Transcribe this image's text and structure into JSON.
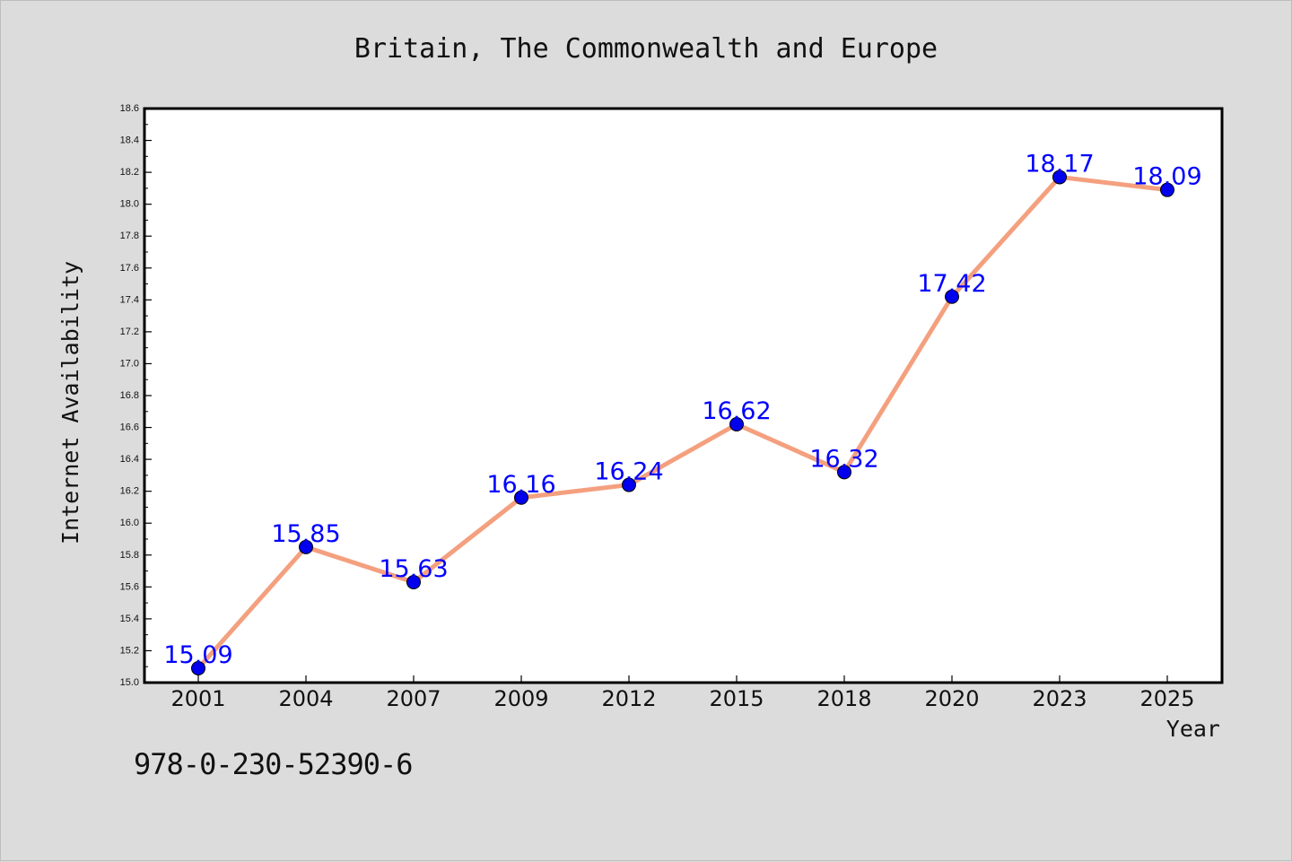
{
  "chart_data": {
    "type": "line",
    "title": "Britain, The Commonwealth and Europe",
    "xlabel": "Year",
    "ylabel": "Internet Availability",
    "categories": [
      "2001",
      "2004",
      "2007",
      "2009",
      "2012",
      "2015",
      "2018",
      "2020",
      "2023",
      "2025"
    ],
    "series": [
      {
        "values": [
          15.09,
          15.85,
          15.63,
          16.16,
          16.24,
          16.62,
          16.32,
          17.42,
          18.17,
          18.09
        ]
      }
    ],
    "data_labels": [
      "15.09",
      "15.85",
      "15.63",
      "16.16",
      "16.24",
      "16.62",
      "16.32",
      "17.42",
      "18.17",
      "18.09"
    ],
    "ylim": [
      15.0,
      18.6
    ],
    "yticks": [
      "15.0",
      "15.2",
      "15.4",
      "15.6",
      "15.8",
      "16.0",
      "16.2",
      "16.4",
      "16.6",
      "16.8",
      "17.0",
      "17.2",
      "17.4",
      "17.6",
      "17.8",
      "18.0",
      "18.2",
      "18.4",
      "18.6"
    ],
    "grid": false,
    "line_color": "#f4a07f",
    "marker_color": "#0000ee",
    "label_color": "#0000ff"
  },
  "footer": {
    "text": "978-0-230-52390-6"
  }
}
